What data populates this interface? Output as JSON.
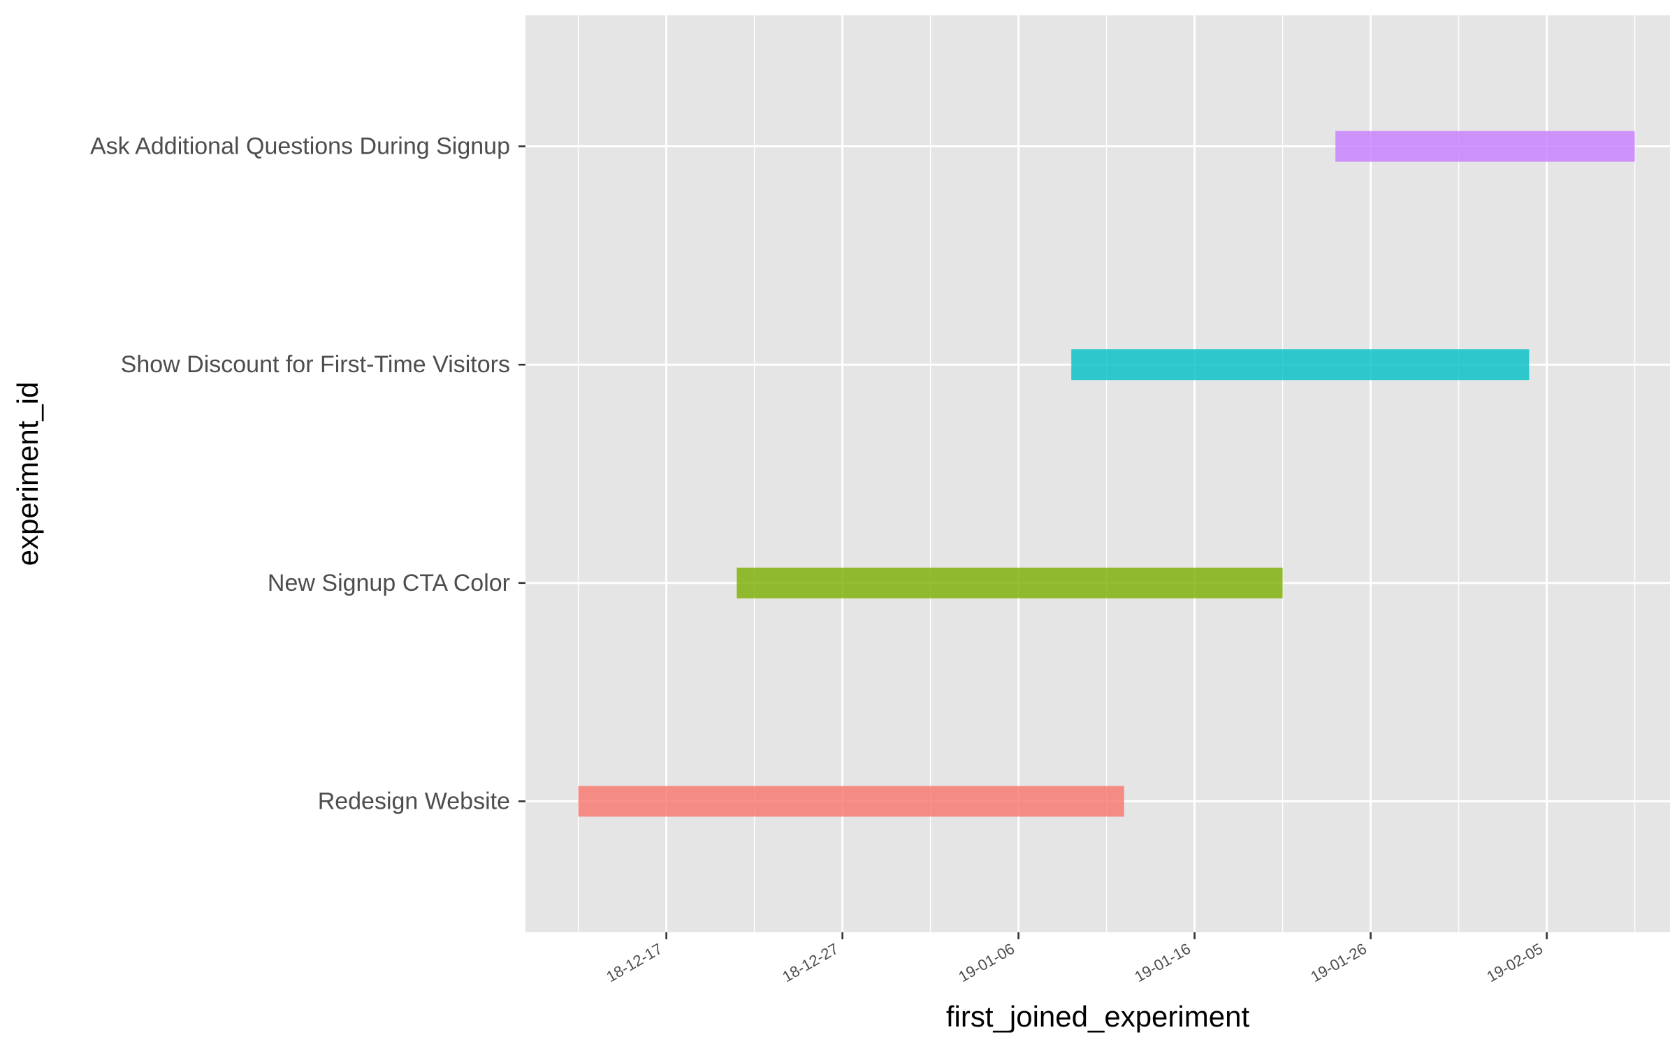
{
  "chart_data": {
    "type": "gantt",
    "title": "",
    "xlabel": "first_joined_experiment",
    "ylabel": "experiment_id",
    "x_ticks": [
      "2018-12-17",
      "2018-12-27",
      "2019-01-06",
      "2019-01-16",
      "2019-01-26",
      "2019-02-05"
    ],
    "x_tick_labels": [
      "18-12-17",
      "18-12-27",
      "19-01-06",
      "19-01-16",
      "19-01-26",
      "19-02-05"
    ],
    "xlim": [
      "2018-12-09",
      "2019-02-12"
    ],
    "grid": true,
    "legend": "none",
    "series": [
      {
        "experiment_id": "Redesign Website",
        "start": "2018-12-12",
        "end": "2019-01-12",
        "color": "#F8766D"
      },
      {
        "experiment_id": "New Signup CTA Color",
        "start": "2018-12-21",
        "end": "2019-01-21",
        "color": "#7CAE00"
      },
      {
        "experiment_id": "Show Discount for First-Time Visitors",
        "start": "2019-01-09",
        "end": "2019-02-04",
        "color": "#00BFC4"
      },
      {
        "experiment_id": "Ask Additional Questions During Signup",
        "start": "2019-01-24",
        "end": "2019-02-10",
        "color": "#C77CFF"
      }
    ],
    "panel_color": "#E5E5E5",
    "grid_color": "#FFFFFF"
  }
}
